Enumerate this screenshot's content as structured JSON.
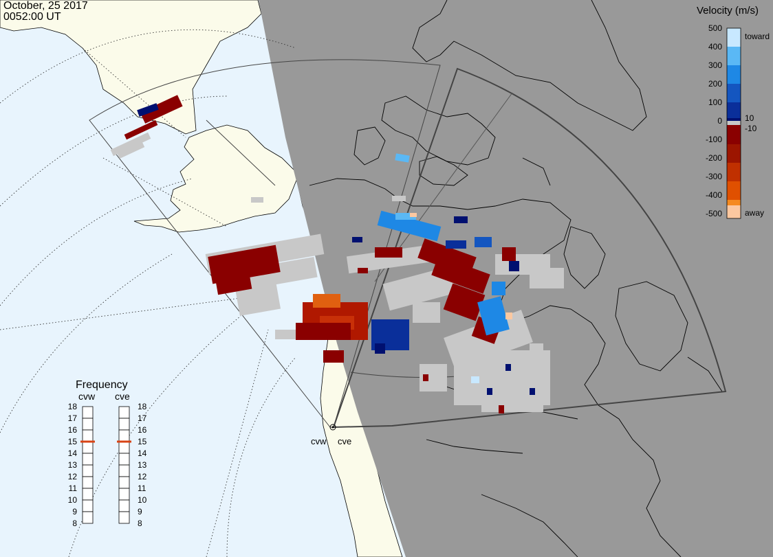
{
  "header": {
    "date": "October, 25 2017",
    "time": "0052:00 UT"
  },
  "radars": [
    {
      "code": "cvw"
    },
    {
      "code": "cve"
    }
  ],
  "colorbar": {
    "title": "Velocity (m/s)",
    "toward_label": "toward",
    "away_label": "away",
    "ticks": [
      "500",
      "400",
      "300",
      "200",
      "100",
      "10",
      "0",
      "-10",
      "-100",
      "-200",
      "-300",
      "-400",
      "-500"
    ]
  },
  "frequency": {
    "title": "Frequency",
    "left_label": "cvw",
    "right_label": "cve",
    "ticks": [
      "18",
      "17",
      "16",
      "15",
      "14",
      "13",
      "12",
      "11",
      "10",
      "9",
      "8"
    ],
    "cvw_value": 15,
    "cve_value": 15,
    "marker_color": "#d84315"
  },
  "colors": {
    "ocean": "#e8f4fd",
    "land_day": "#fbfbea",
    "night": "#999999",
    "ground_scatter": "#c8c8c8",
    "toward_scale": [
      "#c8e8ff",
      "#5ab8f5",
      "#1e88e5",
      "#1456c0",
      "#0a2f9a",
      "#001070"
    ],
    "away_scale": [
      "#8a0000",
      "#9c1500",
      "#c03000",
      "#e05000",
      "#f58a20",
      "#fcc8a0"
    ]
  }
}
